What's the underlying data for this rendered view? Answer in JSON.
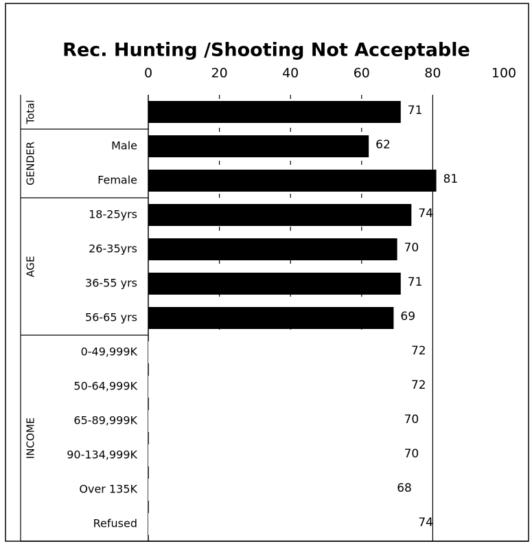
{
  "chart_data": {
    "type": "bar",
    "orientation": "horizontal",
    "title": "Rec. Hunting /Shooting Not Acceptable",
    "xlim": [
      0,
      100
    ],
    "xticks": [
      0,
      20,
      40,
      60,
      80,
      100
    ],
    "grid": true,
    "groups": [
      {
        "name": "Total",
        "categories": [
          null
        ],
        "values": [
          71
        ],
        "colors": [
          "#000000"
        ]
      },
      {
        "name": "GENDER",
        "categories": [
          "Male",
          "Female"
        ],
        "values": [
          62,
          81
        ],
        "colors": [
          "#000000",
          "#000000"
        ]
      },
      {
        "name": "AGE",
        "categories": [
          "18-25yrs",
          "26-35yrs",
          "36-55 yrs",
          "56-65 yrs"
        ],
        "values": [
          74,
          70,
          71,
          69
        ],
        "colors": [
          "#000000",
          "#000000",
          "#000000",
          "#000000"
        ]
      },
      {
        "name": "INCOME",
        "categories": [
          "0-49,999K",
          "50-64,999K",
          "65-89,999K",
          "90-134,999K",
          "Over 135K",
          "Refused"
        ],
        "values": [
          72,
          72,
          70,
          70,
          68,
          74
        ],
        "colors": [
          "#ffffff",
          "#ffffff",
          "#ffffff",
          "#ffffff",
          "#ffffff",
          "#ffffff"
        ]
      }
    ]
  }
}
